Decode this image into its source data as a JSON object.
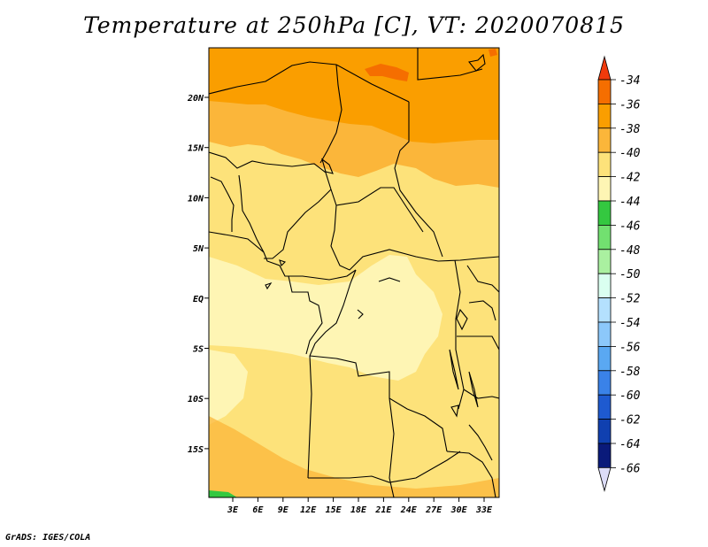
{
  "title": "Temperature at 250hPa [C], VT: 2020070815",
  "credit": "GrADS: IGES/COLA",
  "map": {
    "lat_ticks": [
      "20N",
      "15N",
      "10N",
      "5N",
      "EQ",
      "5S",
      "10S",
      "15S"
    ],
    "lon_ticks": [
      "3E",
      "6E",
      "9E",
      "12E",
      "15E",
      "18E",
      "21E",
      "24E",
      "27E",
      "30E",
      "33E"
    ]
  },
  "colorbar": {
    "labels": [
      "-34",
      "-36",
      "-38",
      "-40",
      "-42",
      "-44",
      "-46",
      "-48",
      "-50",
      "-52",
      "-54",
      "-56",
      "-58",
      "-60",
      "-62",
      "-64",
      "-66"
    ],
    "colors": [
      "#f03a0c",
      "#f56e00",
      "#fa9e00",
      "#fbb63a",
      "#fde27a",
      "#fef5b4",
      "#34c840",
      "#72e070",
      "#aaf0a0",
      "#dafff0",
      "#b4e0fe",
      "#8cc8fa",
      "#5aa8f2",
      "#3a82e8",
      "#1e5ad0",
      "#1040b0",
      "#0a1a7a",
      "#dcdcf8"
    ]
  }
}
